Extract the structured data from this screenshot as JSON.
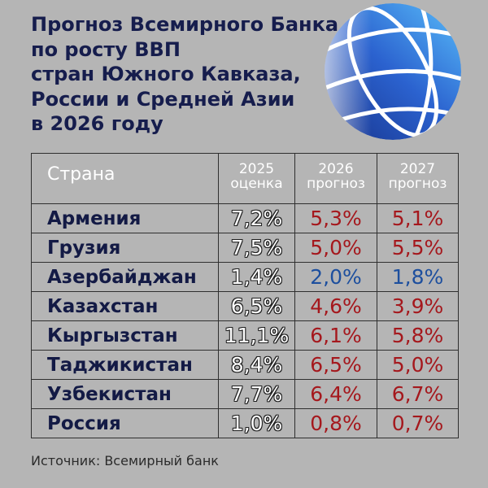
{
  "colors": {
    "background": "#b5b5b5",
    "title": "#161d4d",
    "country_name": "#131a45",
    "header_text": "#ffffff",
    "grid": "#2f2f2f",
    "estimate_text": "#ffffff",
    "estimate_outline": "#1f1f1f",
    "source_text": "#2b2b2b"
  },
  "logo": {
    "icon": "world-bank-globe-icon"
  },
  "chart_data": {
    "type": "table",
    "title": "Прогноз Всемирного Банка\nпо росту ВВП\nстран Южного Кавказа,\nРоссии и Средней Азии\nв 2026 году",
    "columns": [
      "Страна",
      "2025\nоценка",
      "2026\nпрогноз",
      "2027\nпрогноз"
    ],
    "rows": [
      {
        "country": "Армения",
        "values": [
          "7,2%",
          "5,3%",
          "5,1%"
        ],
        "forecast_color": "#a5181d"
      },
      {
        "country": "Грузия",
        "values": [
          "7,5%",
          "5,0%",
          "5,5%"
        ],
        "forecast_color": "#a5181d"
      },
      {
        "country": "Азербайджан",
        "values": [
          "1,4%",
          "2,0%",
          "1,8%"
        ],
        "forecast_color": "#1d4f9e"
      },
      {
        "country": "Казахстан",
        "values": [
          "6,5%",
          "4,6%",
          "3,9%"
        ],
        "forecast_color": "#a5181d"
      },
      {
        "country": "Кыргызстан",
        "values": [
          "11,1%",
          "6,1%",
          "5,8%"
        ],
        "forecast_color": "#a5181d"
      },
      {
        "country": "Таджикистан",
        "values": [
          "8,4%",
          "6,5%",
          "5,0%"
        ],
        "forecast_color": "#a5181d"
      },
      {
        "country": "Узбекистан",
        "values": [
          "7,7%",
          "6,4%",
          "6,7%"
        ],
        "forecast_color": "#a5181d"
      },
      {
        "country": "Россия",
        "values": [
          "1,0%",
          "0,8%",
          "0,7%"
        ],
        "forecast_color": "#a5181d"
      }
    ]
  },
  "footer": {
    "source": "Источник: Всемирный банк"
  }
}
